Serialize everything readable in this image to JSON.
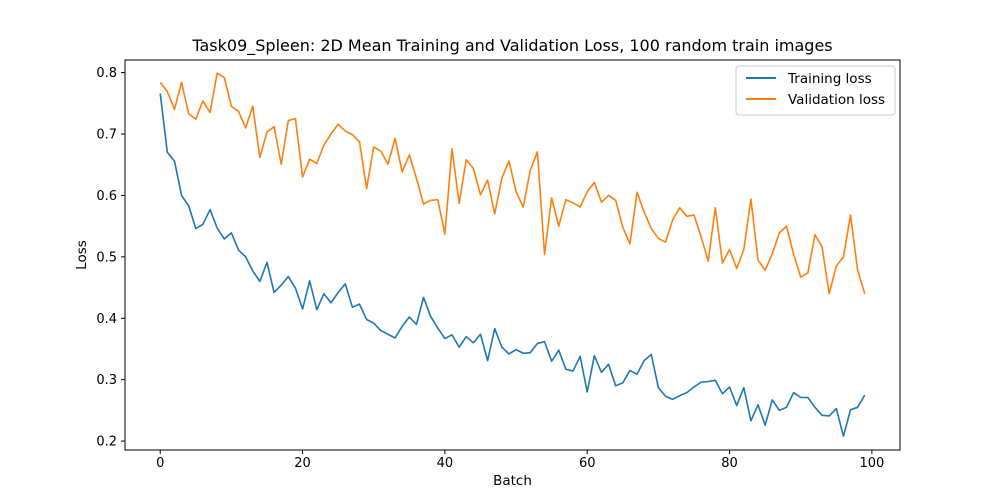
{
  "chart_data": {
    "type": "line",
    "title": "Task09_Spleen: 2D Mean Training and Validation Loss, 100 random train images",
    "xlabel": "Batch",
    "ylabel": "Loss",
    "xlim": [
      -4.95,
      103.95
    ],
    "ylim": [
      0.1855,
      0.8205
    ],
    "xticks": [
      0,
      20,
      40,
      60,
      80,
      100
    ],
    "yticks": [
      0.2,
      0.3,
      0.4,
      0.5,
      0.6,
      0.7,
      0.8
    ],
    "xtick_labels": [
      "0",
      "20",
      "40",
      "60",
      "80",
      "100"
    ],
    "ytick_labels": [
      "0.2",
      "0.3",
      "0.4",
      "0.5",
      "0.6",
      "0.7",
      "0.8"
    ],
    "grid": false,
    "legend_position": "top-right",
    "series": [
      {
        "name": "Training loss",
        "color": "#1f77b4",
        "values": [
          0.766,
          0.67,
          0.656,
          0.6,
          0.583,
          0.546,
          0.553,
          0.577,
          0.547,
          0.529,
          0.539,
          0.511,
          0.5,
          0.477,
          0.46,
          0.491,
          0.442,
          0.454,
          0.468,
          0.449,
          0.415,
          0.461,
          0.414,
          0.44,
          0.425,
          0.442,
          0.456,
          0.418,
          0.423,
          0.398,
          0.392,
          0.38,
          0.374,
          0.368,
          0.387,
          0.402,
          0.39,
          0.434,
          0.403,
          0.384,
          0.367,
          0.373,
          0.353,
          0.37,
          0.36,
          0.374,
          0.331,
          0.383,
          0.353,
          0.342,
          0.349,
          0.343,
          0.344,
          0.359,
          0.362,
          0.33,
          0.348,
          0.317,
          0.314,
          0.338,
          0.28,
          0.339,
          0.312,
          0.325,
          0.29,
          0.295,
          0.315,
          0.309,
          0.331,
          0.341,
          0.287,
          0.273,
          0.268,
          0.274,
          0.279,
          0.288,
          0.296,
          0.297,
          0.299,
          0.277,
          0.288,
          0.258,
          0.287,
          0.233,
          0.259,
          0.226,
          0.267,
          0.25,
          0.255,
          0.279,
          0.271,
          0.271,
          0.255,
          0.242,
          0.241,
          0.253,
          0.208,
          0.251,
          0.255,
          0.275
        ]
      },
      {
        "name": "Validation loss",
        "color": "#ff7f0e",
        "values": [
          0.784,
          0.769,
          0.74,
          0.784,
          0.733,
          0.724,
          0.754,
          0.735,
          0.799,
          0.792,
          0.745,
          0.737,
          0.71,
          0.745,
          0.662,
          0.703,
          0.712,
          0.651,
          0.722,
          0.725,
          0.63,
          0.659,
          0.652,
          0.682,
          0.7,
          0.716,
          0.705,
          0.699,
          0.687,
          0.611,
          0.679,
          0.672,
          0.651,
          0.693,
          0.638,
          0.666,
          0.628,
          0.586,
          0.592,
          0.593,
          0.537,
          0.676,
          0.587,
          0.658,
          0.644,
          0.601,
          0.625,
          0.57,
          0.628,
          0.656,
          0.606,
          0.581,
          0.641,
          0.671,
          0.504,
          0.596,
          0.55,
          0.593,
          0.588,
          0.581,
          0.606,
          0.621,
          0.589,
          0.6,
          0.592,
          0.548,
          0.521,
          0.605,
          0.573,
          0.546,
          0.53,
          0.524,
          0.56,
          0.58,
          0.566,
          0.568,
          0.533,
          0.493,
          0.58,
          0.49,
          0.512,
          0.481,
          0.512,
          0.594,
          0.495,
          0.478,
          0.505,
          0.539,
          0.55,
          0.504,
          0.467,
          0.474,
          0.536,
          0.516,
          0.44,
          0.485,
          0.5,
          0.568,
          0.478,
          0.44
        ]
      }
    ]
  }
}
